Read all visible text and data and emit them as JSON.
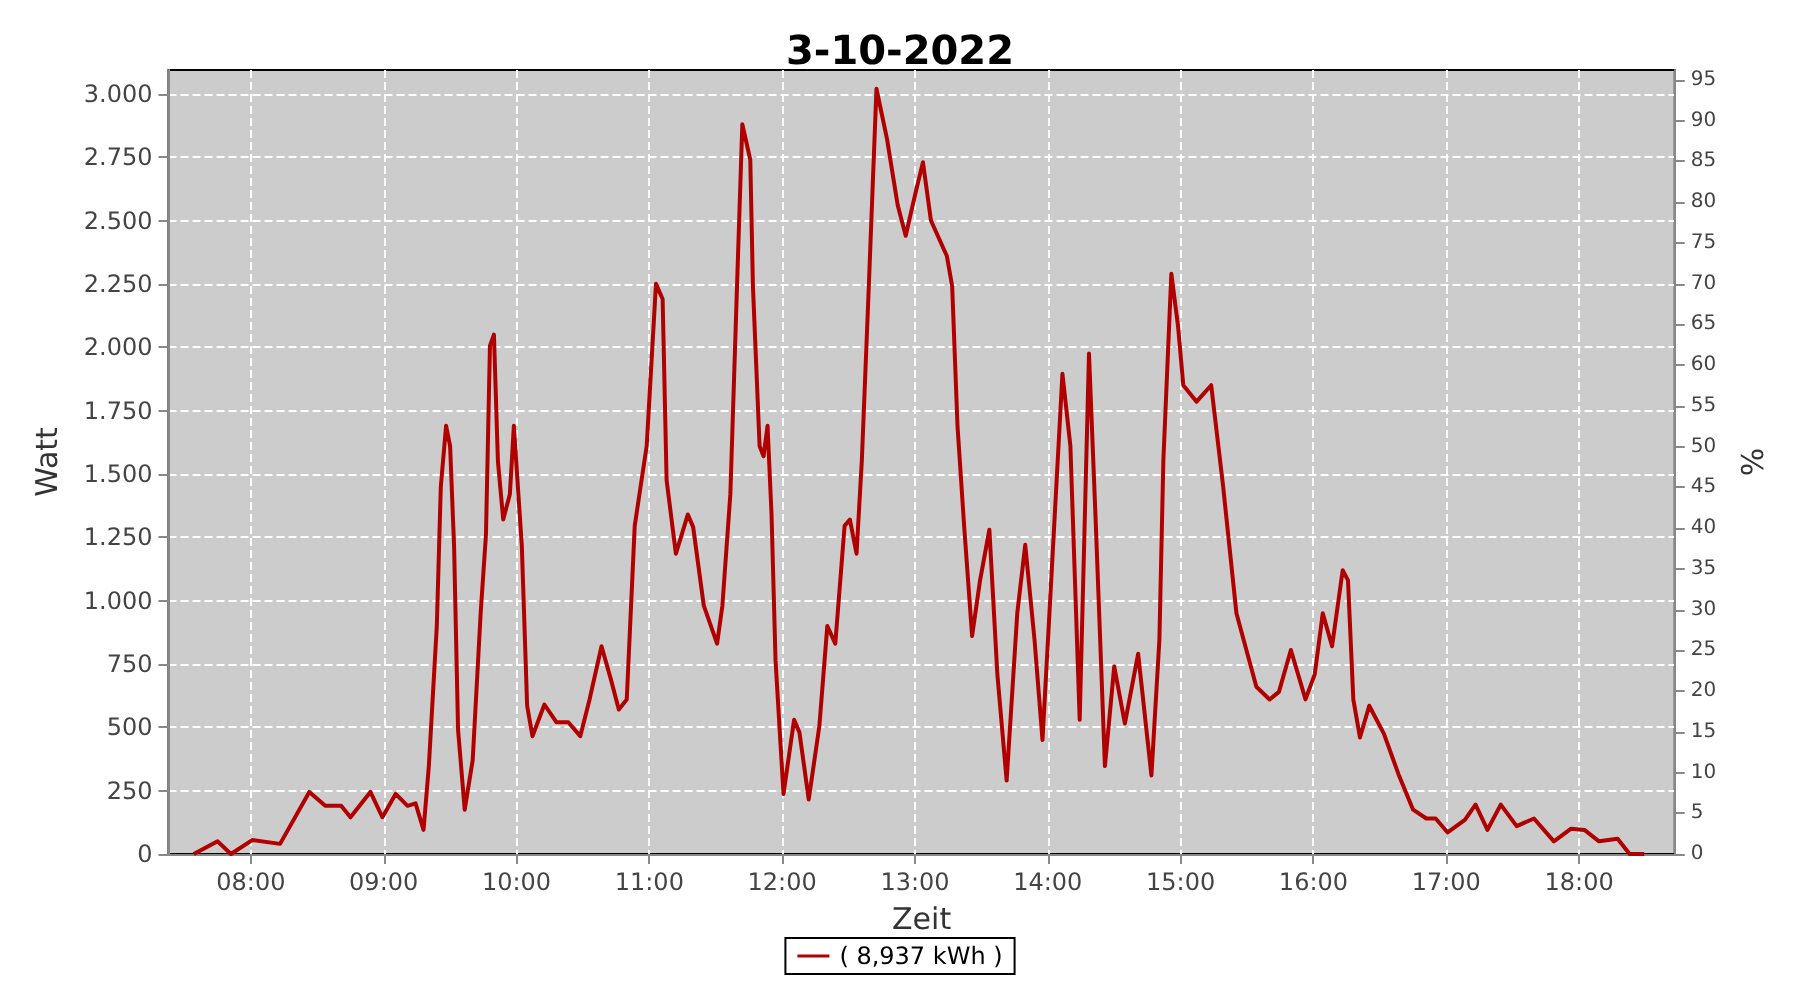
{
  "chart_data": {
    "type": "line",
    "title": "3-10-2022",
    "xlabel": "Zeit",
    "ylabel": "Watt",
    "y2label": "%",
    "xlim": [
      7.38,
      18.72
    ],
    "xticks": [
      {
        "value": 8,
        "label": "08:00"
      },
      {
        "value": 9,
        "label": "09:00"
      },
      {
        "value": 10,
        "label": "10:00"
      },
      {
        "value": 11,
        "label": "11:00"
      },
      {
        "value": 12,
        "label": "12:00"
      },
      {
        "value": 13,
        "label": "13:00"
      },
      {
        "value": 14,
        "label": "14:00"
      },
      {
        "value": 15,
        "label": "15:00"
      },
      {
        "value": 16,
        "label": "16:00"
      },
      {
        "value": 17,
        "label": "17:00"
      },
      {
        "value": 18,
        "label": "18:00"
      }
    ],
    "ylim": [
      0,
      3094
    ],
    "yticks": [
      0,
      250,
      500,
      750,
      {
        "value": 1000,
        "label": "1.000"
      },
      {
        "value": 1250,
        "label": "1.250"
      },
      {
        "value": 1500,
        "label": "1.500"
      },
      {
        "value": 1750,
        "label": "1.750"
      },
      {
        "value": 2000,
        "label": "2.000"
      },
      {
        "value": 2250,
        "label": "2.250"
      },
      {
        "value": 2500,
        "label": "2.500"
      },
      {
        "value": 2750,
        "label": "2.750"
      },
      {
        "value": 3000,
        "label": "3.000"
      }
    ],
    "y2lim": [
      0,
      96.2
    ],
    "y2ticks": [
      0,
      5,
      10,
      15,
      20,
      25,
      30,
      35,
      40,
      45,
      50,
      55,
      60,
      65,
      70,
      75,
      80,
      85,
      90,
      95
    ],
    "grid": true,
    "legend": "bottom",
    "marker": "none",
    "line_style": "solid",
    "series": [
      {
        "name": "( 8,937 kWh )",
        "color": "#b00000",
        "x": [
          7.57,
          7.75,
          7.85,
          8.01,
          8.22,
          8.44,
          8.56,
          8.68,
          8.75,
          8.9,
          8.99,
          9.09,
          9.18,
          9.24,
          9.3,
          9.34,
          9.4,
          9.43,
          9.47,
          9.5,
          9.53,
          9.56,
          9.61,
          9.67,
          9.73,
          9.77,
          9.8,
          9.83,
          9.86,
          9.9,
          9.95,
          9.98,
          10.04,
          10.08,
          10.12,
          10.21,
          10.3,
          10.39,
          10.48,
          10.55,
          10.64,
          10.71,
          10.77,
          10.83,
          10.89,
          10.98,
          11.05,
          11.1,
          11.13,
          11.2,
          11.29,
          11.33,
          11.41,
          11.51,
          11.55,
          11.61,
          11.66,
          11.7,
          11.76,
          11.78,
          11.83,
          11.86,
          11.89,
          11.92,
          11.95,
          12.01,
          12.09,
          12.13,
          12.2,
          12.28,
          12.34,
          12.4,
          12.47,
          12.51,
          12.56,
          12.6,
          12.65,
          12.71,
          12.79,
          12.87,
          12.93,
          13.0,
          13.06,
          13.12,
          13.24,
          13.28,
          13.32,
          13.37,
          13.43,
          13.49,
          13.56,
          13.62,
          13.69,
          13.77,
          13.83,
          13.9,
          13.96,
          14.02,
          14.11,
          14.17,
          14.24,
          14.31,
          14.36,
          14.43,
          14.5,
          14.58,
          14.68,
          14.78,
          14.84,
          14.87,
          14.93,
          14.98,
          15.02,
          15.12,
          15.23,
          15.32,
          15.42,
          15.57,
          15.67,
          15.74,
          15.83,
          15.94,
          16.01,
          16.07,
          16.14,
          16.22,
          16.26,
          16.3,
          16.35,
          16.42,
          16.53,
          16.64,
          16.75,
          16.85,
          16.92,
          17.01,
          17.14,
          17.22,
          17.31,
          17.41,
          17.53,
          17.66,
          17.81,
          17.94,
          18.04,
          18.15,
          18.29,
          18.38,
          18.49
        ],
        "values": [
          0,
          50,
          0,
          55,
          40,
          245,
          190,
          190,
          145,
          245,
          145,
          237,
          190,
          200,
          95,
          347,
          900,
          1450,
          1690,
          1610,
          1215,
          490,
          175,
          370,
          950,
          1260,
          2005,
          2050,
          1550,
          1320,
          1420,
          1690,
          1215,
          585,
          465,
          590,
          520,
          520,
          465,
          610,
          820,
          690,
          570,
          610,
          1295,
          1610,
          2250,
          2190,
          1475,
          1185,
          1340,
          1290,
          980,
          830,
          980,
          1420,
          2240,
          2880,
          2740,
          2240,
          1610,
          1570,
          1690,
          1340,
          765,
          237,
          530,
          480,
          215,
          505,
          900,
          830,
          1295,
          1320,
          1185,
          1555,
          2210,
          3020,
          2820,
          2560,
          2440,
          2600,
          2730,
          2500,
          2360,
          2240,
          1690,
          1295,
          860,
          1080,
          1280,
          710,
          290,
          950,
          1220,
          845,
          450,
          1025,
          1895,
          1610,
          530,
          1975,
          1320,
          347,
          740,
          515,
          790,
          310,
          845,
          1555,
          2290,
          2085,
          1850,
          1785,
          1850,
          1450,
          950,
          660,
          610,
          640,
          805,
          610,
          710,
          950,
          820,
          1120,
          1080,
          610,
          460,
          585,
          475,
          315,
          175,
          140,
          140,
          85,
          135,
          195,
          95,
          195,
          110,
          140,
          50,
          100,
          95,
          50,
          60,
          0,
          0
        ]
      }
    ]
  }
}
